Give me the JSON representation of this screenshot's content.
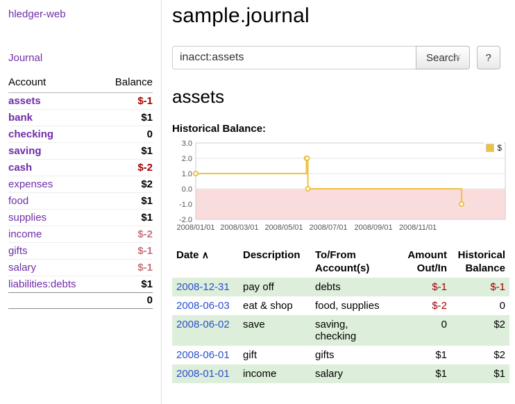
{
  "sidebar": {
    "app_title": "hledger-web",
    "journal_link": "Journal",
    "accounts": {
      "col_account": "Account",
      "col_balance": "Balance",
      "rows": [
        {
          "name": "assets",
          "indent": 1,
          "selected": true,
          "balance": "$-1",
          "balance_class": "neg-strong"
        },
        {
          "name": "bank",
          "indent": 2,
          "selected": true,
          "balance": "$1",
          "balance_class": ""
        },
        {
          "name": "checking",
          "indent": 3,
          "selected": true,
          "balance": "0",
          "balance_class": ""
        },
        {
          "name": "saving",
          "indent": 3,
          "selected": true,
          "balance": "$1",
          "balance_class": ""
        },
        {
          "name": "cash",
          "indent": 2,
          "selected": true,
          "balance": "$-2",
          "balance_class": "neg-strong"
        },
        {
          "name": "expenses",
          "indent": 1,
          "selected": false,
          "balance": "$2",
          "balance_class": ""
        },
        {
          "name": "food",
          "indent": 2,
          "selected": false,
          "balance": "$1",
          "balance_class": ""
        },
        {
          "name": "supplies",
          "indent": 2,
          "selected": false,
          "balance": "$1",
          "balance_class": ""
        },
        {
          "name": "income",
          "indent": 1,
          "selected": false,
          "balance": "$-2",
          "balance_class": "neg-soft"
        },
        {
          "name": "gifts",
          "indent": 2,
          "selected": false,
          "balance": "$-1",
          "balance_class": "neg-soft"
        },
        {
          "name": "salary",
          "indent": 2,
          "selected": false,
          "balance": "$-1",
          "balance_class": "neg-soft"
        },
        {
          "name": "liabilities:debts",
          "indent": 1,
          "selected": false,
          "balance": "$1",
          "balance_class": ""
        }
      ],
      "total": "0"
    }
  },
  "header": {
    "title": "sample.journal"
  },
  "search": {
    "value": "inacct:assets",
    "clear_icon": "×",
    "search_button": "Search",
    "help_button": "?"
  },
  "account_page": {
    "heading": "assets",
    "chart_label": "Historical Balance:"
  },
  "chart_data": {
    "type": "line",
    "style": "step",
    "title": "Historical Balance",
    "xlabel": "",
    "ylabel": "",
    "x_range": [
      "2008/01/01",
      "2009/03/01"
    ],
    "y_range": [
      -2,
      3
    ],
    "x_ticks": [
      "2008/01/01",
      "2008/03/01",
      "2008/05/01",
      "2008/07/01",
      "2008/09/01",
      "2008/11/01"
    ],
    "y_ticks": [
      "3.0",
      "2.0",
      "1.0",
      "0.0",
      "-1.0",
      "-2.0"
    ],
    "grid": true,
    "legend": {
      "label": "$",
      "position": "top-right"
    },
    "series": [
      {
        "name": "$",
        "points": [
          [
            "2008-01-01",
            1
          ],
          [
            "2008-06-01",
            2
          ],
          [
            "2008-06-02",
            2
          ],
          [
            "2008-06-03",
            0
          ],
          [
            "2008-12-31",
            -1
          ]
        ]
      }
    ],
    "colors": {
      "line": "#edc240",
      "marker_fill": "#ffffff",
      "below_zero": "#fbdcdc",
      "grid": "#e6e6e6"
    }
  },
  "register": {
    "columns": {
      "date": "Date",
      "sort_icon": "∧",
      "description": "Description",
      "tofrom_line1": "To/From",
      "tofrom_line2": "Account(s)",
      "amount_line1": "Amount",
      "amount_line2": "Out/In",
      "balance_line1": "Historical",
      "balance_line2": "Balance"
    },
    "rows": [
      {
        "date": "2008-12-31",
        "description": "pay off",
        "accounts": "debts",
        "amount": "$-1",
        "balance": "$-1"
      },
      {
        "date": "2008-06-03",
        "description": "eat & shop",
        "accounts": "food, supplies",
        "amount": "$-2",
        "balance": "0"
      },
      {
        "date": "2008-06-02",
        "description": "save",
        "accounts": "saving,\nchecking",
        "amount": "0",
        "balance": "$2"
      },
      {
        "date": "2008-06-01",
        "description": "gift",
        "accounts": "gifts",
        "amount": "$1",
        "balance": "$2"
      },
      {
        "date": "2008-01-01",
        "description": "income",
        "accounts": "salary",
        "amount": "$1",
        "balance": "$1"
      }
    ]
  },
  "colors": {
    "link_purple": "#6f2da8",
    "link_blue": "#2a50cc",
    "negative_strong": "#a40000",
    "negative_soft": "#c4717d",
    "row_green": "#ddeeda",
    "series_gold": "#edc240",
    "below_zero_pink": "#fbdcdc"
  }
}
